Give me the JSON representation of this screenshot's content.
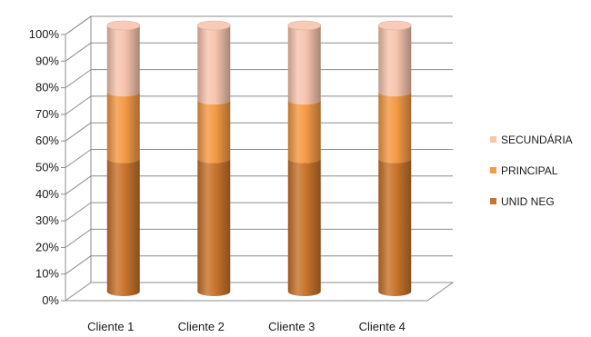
{
  "chart_data": {
    "type": "bar",
    "stacked": "percent",
    "shape": "cylinder-3d",
    "categories": [
      "Cliente 1",
      "Cliente 2",
      "Cliente 3",
      "Cliente 4"
    ],
    "series": [
      {
        "name": "UNID NEG",
        "values": [
          50,
          50,
          50,
          50
        ],
        "color": "#c8742c"
      },
      {
        "name": "PRINCIPAL",
        "values": [
          25,
          22,
          22,
          25
        ],
        "color": "#f49a45"
      },
      {
        "name": "SECUNDÁRIA",
        "values": [
          25,
          28,
          28,
          25
        ],
        "color": "#f7c4ae"
      }
    ],
    "yticks": [
      "0%",
      "10%",
      "20%",
      "30%",
      "40%",
      "50%",
      "60%",
      "70%",
      "80%",
      "90%",
      "100%"
    ],
    "ylim": [
      0,
      100
    ],
    "grid": true,
    "legend_position": "right",
    "legend_order": [
      "SECUNDÁRIA",
      "PRINCIPAL",
      "UNID NEG"
    ]
  }
}
